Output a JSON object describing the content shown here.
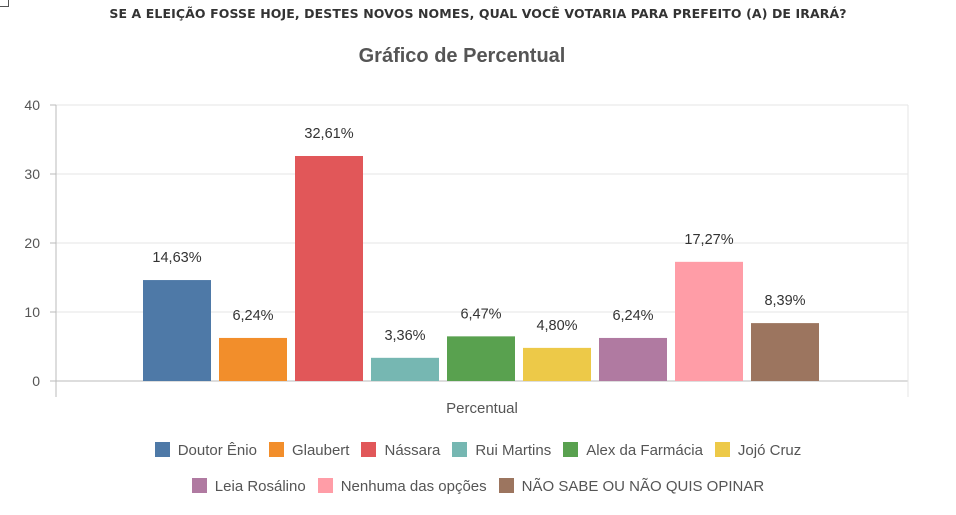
{
  "headline": "SE A ELEIÇÃO FOSSE HOJE, DESTES NOVOS NOMES, QUAL VOCÊ VOTARIA PARA PREFEITO (A) DE IRARÁ?",
  "chart_data": {
    "type": "bar",
    "title": "Gráfico de Percentual",
    "xlabel": "Percentual",
    "ylabel": "",
    "ylim": [
      0,
      40
    ],
    "yticks": [
      0,
      10,
      20,
      30,
      40
    ],
    "grid": true,
    "legend_position": "bottom",
    "categories": [
      "Percentual"
    ],
    "series": [
      {
        "name": "Doutor Ênio",
        "values": [
          14.63
        ],
        "label": "14,63%",
        "color": "#4e79a7"
      },
      {
        "name": "Glaubert",
        "values": [
          6.24
        ],
        "label": "6,24%",
        "color": "#f28e2b"
      },
      {
        "name": "Nássara",
        "values": [
          32.61
        ],
        "label": "32,61%",
        "color": "#e15759"
      },
      {
        "name": "Rui Martins",
        "values": [
          3.36
        ],
        "label": "3,36%",
        "color": "#76b7b2"
      },
      {
        "name": "Alex da Farmácia",
        "values": [
          6.47
        ],
        "label": "6,47%",
        "color": "#59a14f"
      },
      {
        "name": "Jojó Cruz",
        "values": [
          4.8
        ],
        "label": "4,80%",
        "color": "#edc948"
      },
      {
        "name": "Leia Rosálino",
        "values": [
          6.24
        ],
        "label": "6,24%",
        "color": "#b07aa1"
      },
      {
        "name": "Nenhuma das opções",
        "values": [
          17.27
        ],
        "label": "17,27%",
        "color": "#ff9da7"
      },
      {
        "name": "NÃO SABE OU NÃO QUIS OPINAR",
        "values": [
          8.39
        ],
        "label": "8,39%",
        "color": "#9c755f"
      }
    ]
  }
}
